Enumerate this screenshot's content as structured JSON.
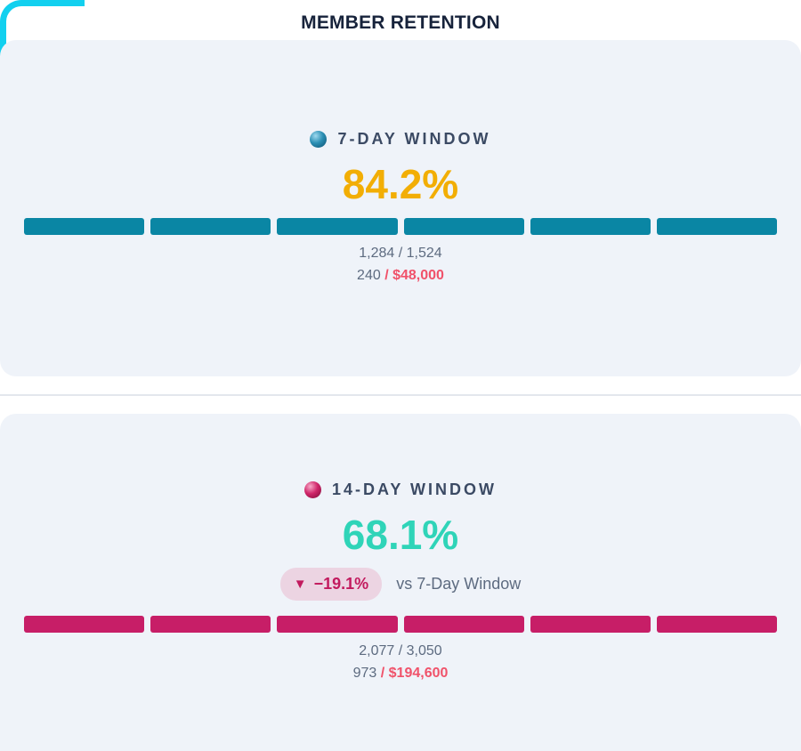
{
  "title": "MEMBER RETENTION",
  "colors": {
    "accent_frame": "#12d0ef",
    "seven_day_value": "#f2ae05",
    "seven_day_bar": "#0a86a4",
    "fourteen_day_value": "#2fd4b8",
    "fourteen_day_bar": "#c71e67",
    "money": "#f0526a"
  },
  "windows": [
    {
      "icon": "blue-sphere-icon",
      "label": "7-DAY WINDOW",
      "percent": "84.2%",
      "ratio_text": "1,284 / 1,524",
      "count": "240",
      "money": "/ $48,000",
      "bar_segments": 6
    },
    {
      "icon": "pink-sphere-icon",
      "label": "14-DAY WINDOW",
      "percent": "68.1%",
      "delta": {
        "arrow": "▼",
        "value": "−19.1%",
        "comparison": "vs 7-Day Window"
      },
      "ratio_text": "2,077 / 3,050",
      "count": "973",
      "money": "/ $194,600",
      "bar_segments": 6
    }
  ]
}
